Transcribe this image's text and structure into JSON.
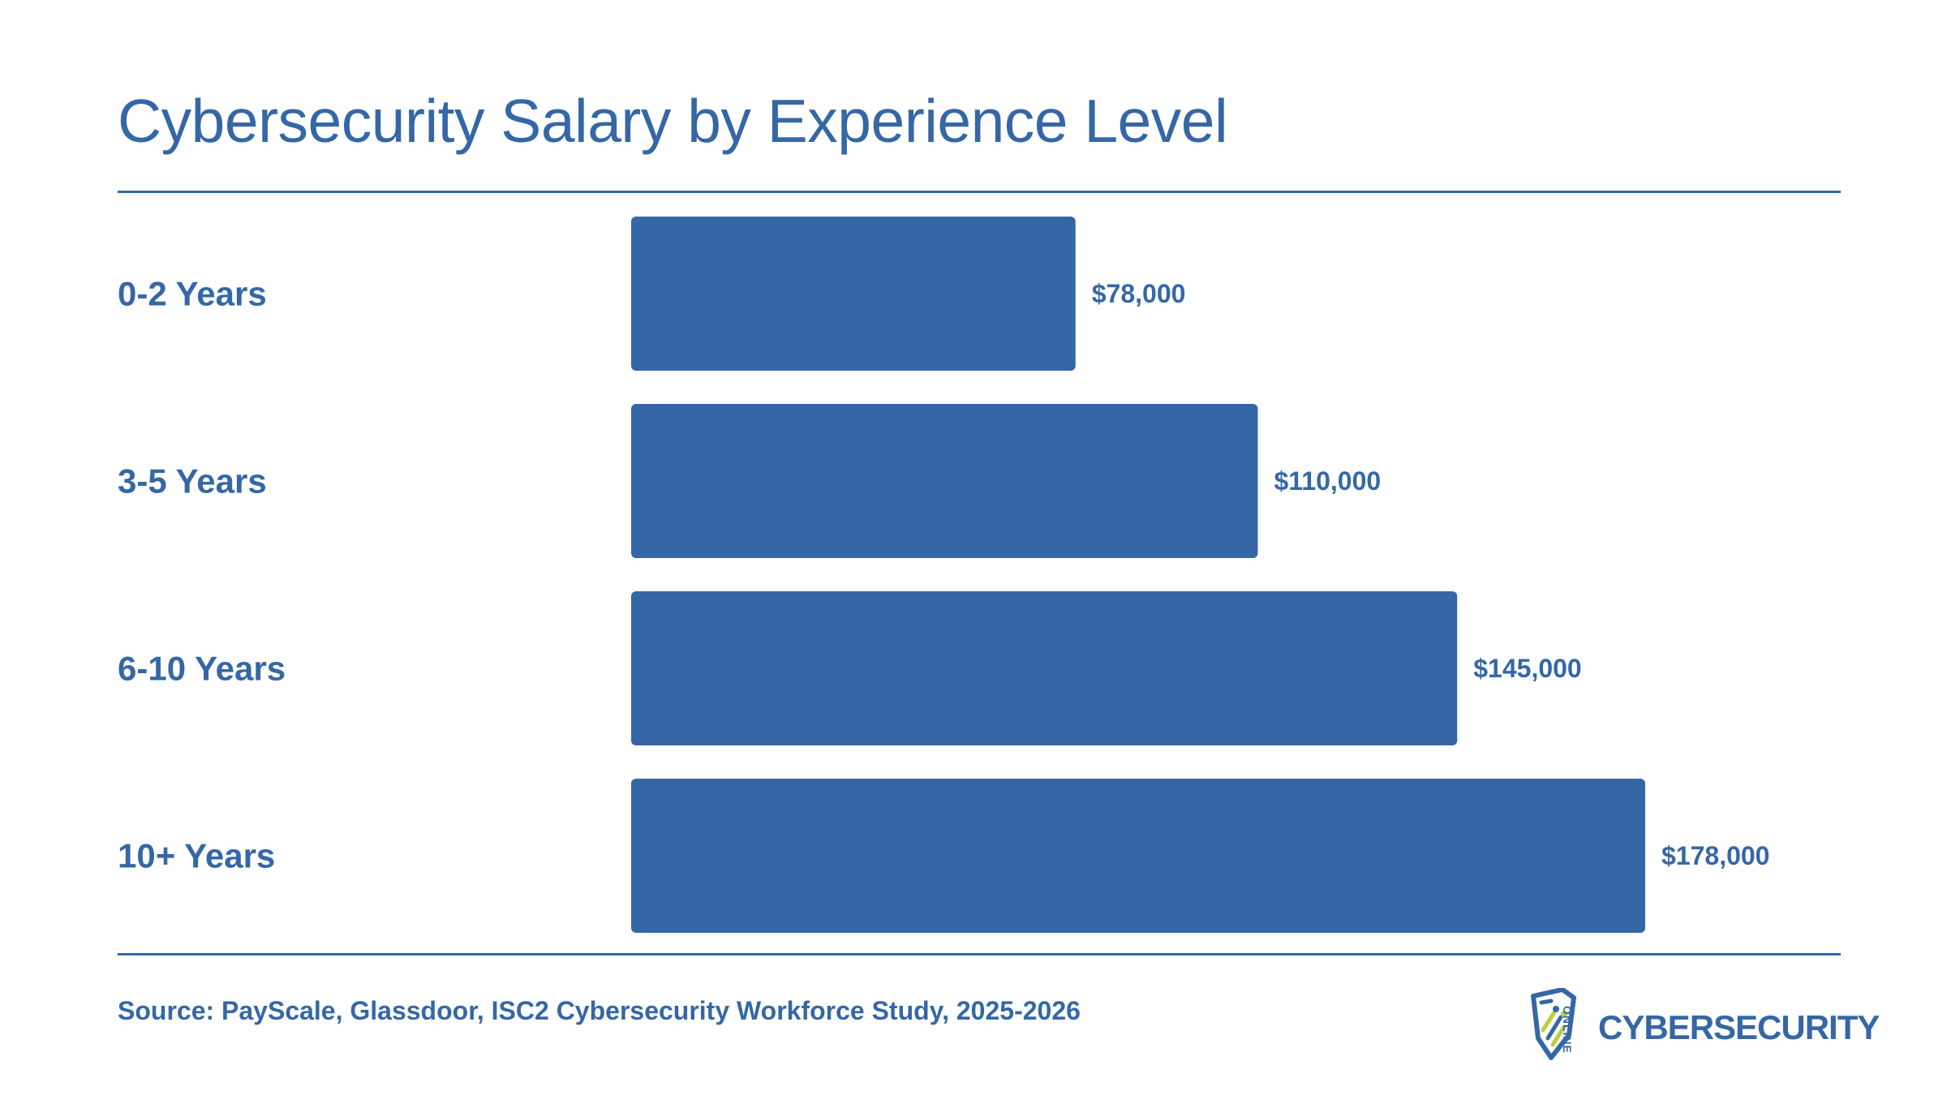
{
  "chart_data": {
    "type": "bar",
    "orientation": "horizontal",
    "title": "Cybersecurity Salary by Experience Level",
    "categories": [
      "0-2 Years",
      "3-5 Years",
      "6-10 Years",
      "10+ Years"
    ],
    "values": [
      78000,
      110000,
      145000,
      178000
    ],
    "value_labels": [
      "$78,000",
      "$110,000",
      "$145,000",
      "$178,000"
    ],
    "xlim": [
      0,
      178000
    ],
    "grid": false,
    "legend": "none",
    "bar_color": "#3567a6"
  },
  "footer": {
    "source": "Source: PayScale, Glassdoor, ISC2 Cybersecurity Workforce Study, 2025-2026"
  },
  "logo": {
    "small_text": "ONLINE",
    "main_text": "CYBERSECURITY",
    "icon": "shield-icon"
  },
  "colors": {
    "primary": "#3567a6",
    "logo_accent": "#b9cf3f",
    "background": "#ffffff"
  }
}
